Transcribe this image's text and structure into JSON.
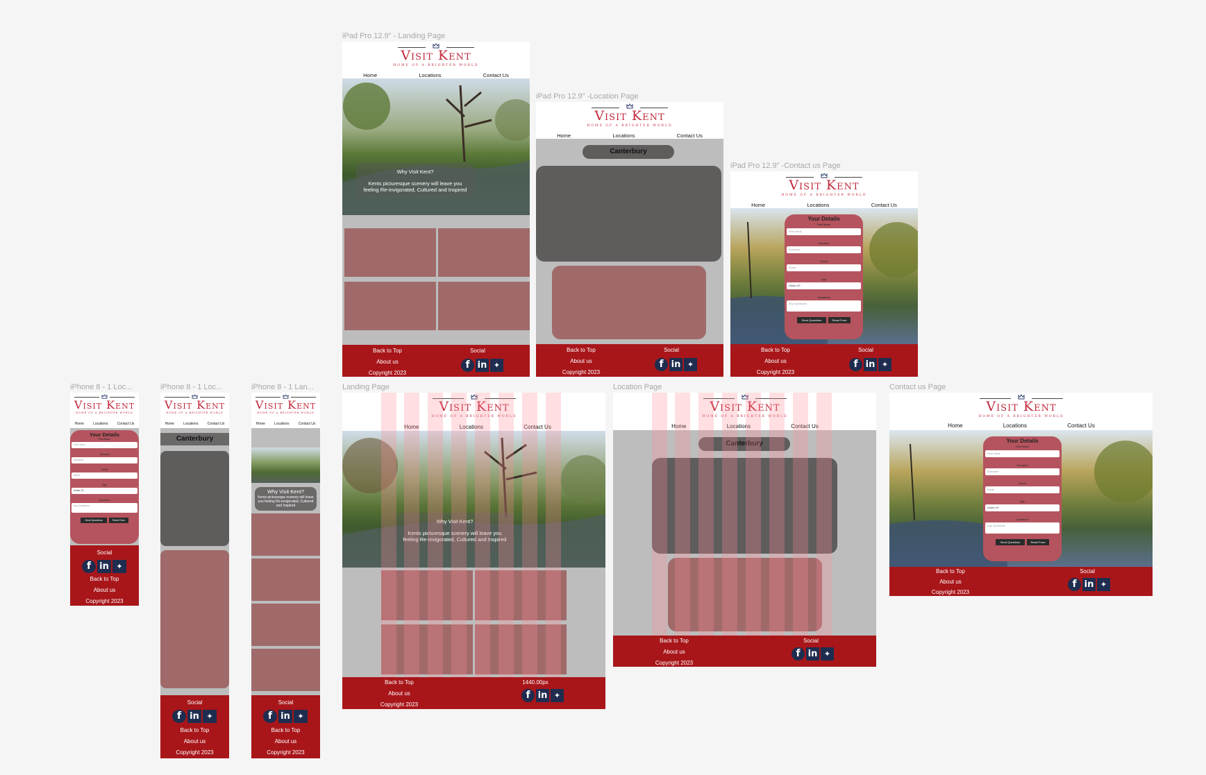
{
  "brand": {
    "title": "Visit Kent",
    "tagline": "HOME OF A BRIGHTER WORLD"
  },
  "nav": {
    "home": "Home",
    "locations": "Locations",
    "contact": "Contact Us"
  },
  "frames": {
    "ipad_landing": "iPad Pro 12.9\" - Landing Page",
    "ipad_location": "iPad Pro 12.9\" -Location Page",
    "ipad_contact": "iPad Pro 12.9\" -Contact us Page",
    "iphone_loc_a": "iPhone 8 - 1 Loc...",
    "iphone_loc_b": "iPhone 8 - 1 Loc...",
    "iphone_lan": "iPhone 8 - 1 Lan...",
    "landing": "Landing Page",
    "location": "Location Page",
    "contact": "Contact us Page"
  },
  "hero": {
    "question": "Why Visit Kent?",
    "text": "Kents picturesque scenery will leave you feeling Re-invigorated, Cultured and Inspired"
  },
  "location": {
    "name": "Canterbury"
  },
  "form": {
    "heading": "Your Details",
    "first_label": "First Name",
    "first_placeholder": "First name",
    "surname_label": "Surname",
    "surname_placeholder": "Surname",
    "email_label": "Email",
    "email_placeholder": "Email",
    "age_label": "Age",
    "age_value": "Under 20",
    "questions_label": "Questions",
    "questions_placeholder": "Any Questions",
    "send": "Send Questions",
    "reset": "Reset Form"
  },
  "footer": {
    "back_to_top": "Back to Top",
    "about": "About us",
    "copyright": "Copyright 2023",
    "social": "Social",
    "width_note": "1440.00px"
  },
  "icons": [
    "facebook-icon",
    "linkedin-icon",
    "twitter-icon"
  ],
  "colors": {
    "brand_red": "#c0283a",
    "footer_red": "#a8161a",
    "tile_rose": "#a06a6a",
    "dark_block": "#5f5c5c",
    "form_rose": "#b5545e",
    "social_navy": "#1e2d4f"
  }
}
